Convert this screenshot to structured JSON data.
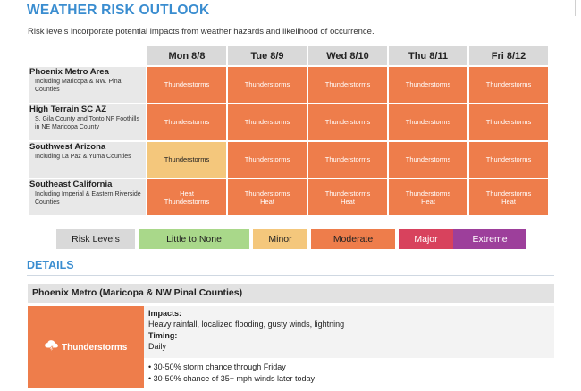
{
  "header": {
    "title": "WEATHER RISK OUTLOOK",
    "subtitle": "Risk levels incorporate potential impacts from weather hazards and likelihood of occurrence."
  },
  "days": [
    "Mon 8/8",
    "Tue 8/9",
    "Wed 8/10",
    "Thu 8/11",
    "Fri 8/12"
  ],
  "regions": [
    {
      "name": "Phoenix Metro Area",
      "desc": "Including Maricopa & NW. Pinal Counties",
      "cells": [
        {
          "text": "Thunderstorms",
          "level": "moderate"
        },
        {
          "text": "Thunderstorms",
          "level": "moderate"
        },
        {
          "text": "Thunderstorms",
          "level": "moderate"
        },
        {
          "text": "Thunderstorms",
          "level": "moderate"
        },
        {
          "text": "Thunderstorms",
          "level": "moderate"
        }
      ]
    },
    {
      "name": "High Terrain SC AZ",
      "desc": "S. Gila County and Tonto NF Foothills in NE Maricopa County",
      "cells": [
        {
          "text": "Thunderstorms",
          "level": "moderate"
        },
        {
          "text": "Thunderstorms",
          "level": "moderate"
        },
        {
          "text": "Thunderstorms",
          "level": "moderate"
        },
        {
          "text": "Thunderstorms",
          "level": "moderate"
        },
        {
          "text": "Thunderstorms",
          "level": "moderate"
        }
      ]
    },
    {
      "name": "Southwest Arizona",
      "desc": "Including La Paz & Yuma Counties",
      "cells": [
        {
          "text": "Thunderstorms",
          "level": "minor"
        },
        {
          "text": "Thunderstorms",
          "level": "moderate"
        },
        {
          "text": "Thunderstorms",
          "level": "moderate"
        },
        {
          "text": "Thunderstorms",
          "level": "moderate"
        },
        {
          "text": "Thunderstorms",
          "level": "moderate"
        }
      ]
    },
    {
      "name": "Southeast California",
      "desc": "Including Imperial & Eastern Riverside Counties",
      "cells": [
        {
          "text": "Heat\nThunderstorms",
          "level": "moderate"
        },
        {
          "text": "Thunderstorms\nHeat",
          "level": "moderate"
        },
        {
          "text": "Thunderstorms\nHeat",
          "level": "moderate"
        },
        {
          "text": "Thunderstorms\nHeat",
          "level": "moderate"
        },
        {
          "text": "Thunderstorms\nHeat",
          "level": "moderate"
        }
      ]
    }
  ],
  "legend": {
    "items": [
      {
        "label": "Risk Levels",
        "color": "#d9d9d9"
      },
      {
        "label": "Little to None",
        "color": "#a9d88a"
      },
      {
        "label": "Minor",
        "color": "#f4c77c"
      },
      {
        "label": "Moderate",
        "color": "#ee7d4b"
      },
      {
        "label": "Major",
        "color": "#d8425d"
      },
      {
        "label": "Extreme",
        "color": "#9d3f9b"
      }
    ]
  },
  "details": {
    "title": "DETAILS",
    "section_title": "Phoenix Metro (Maricopa & NW Pinal Counties)",
    "hazard_label": "Thunderstorms",
    "hazard_icon": "thunderstorm-cloud-icon",
    "impacts_label": "Impacts:",
    "impacts_text": "Heavy rainfall, localized flooding, gusty winds, lightning",
    "timing_label": "Timing:",
    "timing_text": "Daily",
    "bullets": [
      "• 30-50% storm chance through Friday",
      "• 30-50% chance of 35+ mph winds later today"
    ]
  },
  "colors": {
    "accent": "#3a8dd0",
    "moderate": "#ee7d4b",
    "minor": "#f4c77c"
  }
}
